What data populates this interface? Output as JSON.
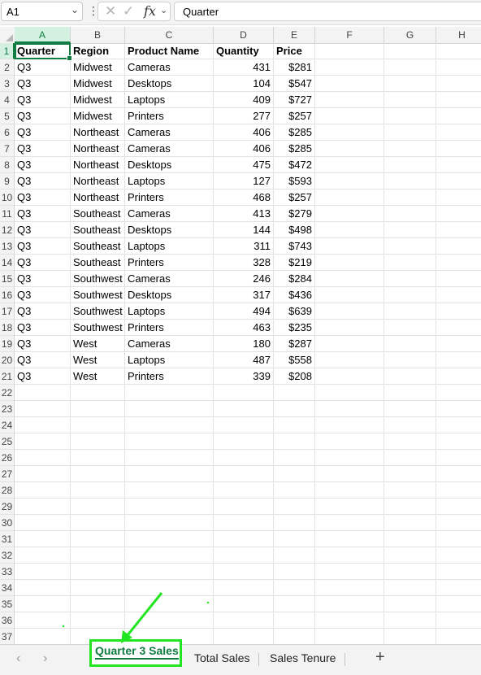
{
  "formula_bar": {
    "name_box": "A1",
    "formula": "Quarter"
  },
  "columns": [
    "A",
    "B",
    "C",
    "D",
    "E",
    "F",
    "G",
    "H"
  ],
  "row_count": 37,
  "header_row": [
    "Quarter",
    "Region",
    "Product Name",
    "Quantity",
    "Price"
  ],
  "rows": [
    [
      "Q3",
      "Midwest",
      "Cameras",
      "431",
      "$281"
    ],
    [
      "Q3",
      "Midwest",
      "Desktops",
      "104",
      "$547"
    ],
    [
      "Q3",
      "Midwest",
      "Laptops",
      "409",
      "$727"
    ],
    [
      "Q3",
      "Midwest",
      "Printers",
      "277",
      "$257"
    ],
    [
      "Q3",
      "Northeast",
      "Cameras",
      "406",
      "$285"
    ],
    [
      "Q3",
      "Northeast",
      "Cameras",
      "406",
      "$285"
    ],
    [
      "Q3",
      "Northeast",
      "Desktops",
      "475",
      "$472"
    ],
    [
      "Q3",
      "Northeast",
      "Laptops",
      "127",
      "$593"
    ],
    [
      "Q3",
      "Northeast",
      "Printers",
      "468",
      "$257"
    ],
    [
      "Q3",
      "Southeast",
      "Cameras",
      "413",
      "$279"
    ],
    [
      "Q3",
      "Southeast",
      "Desktops",
      "144",
      "$498"
    ],
    [
      "Q3",
      "Southeast",
      "Laptops",
      "311",
      "$743"
    ],
    [
      "Q3",
      "Southeast",
      "Printers",
      "328",
      "$219"
    ],
    [
      "Q3",
      "Southwest",
      "Cameras",
      "246",
      "$284"
    ],
    [
      "Q3",
      "Southwest",
      "Desktops",
      "317",
      "$436"
    ],
    [
      "Q3",
      "Southwest",
      "Laptops",
      "494",
      "$639"
    ],
    [
      "Q3",
      "Southwest",
      "Printers",
      "463",
      "$235"
    ],
    [
      "Q3",
      "West",
      "Cameras",
      "180",
      "$287"
    ],
    [
      "Q3",
      "West",
      "Laptops",
      "487",
      "$558"
    ],
    [
      "Q3",
      "West",
      "Printers",
      "339",
      "$208"
    ]
  ],
  "sheet_tabs": [
    "Quarter 3 Sales",
    "Total Sales",
    "Sales Tenure"
  ],
  "active_tab": "Quarter 3 Sales",
  "colors": {
    "accent": "#107c41",
    "annotation": "#22e622"
  },
  "icons": {
    "name_box_dropdown": "chevron-down-icon",
    "cancel": "cancel-x-icon",
    "enter": "checkmark-icon",
    "function": "fx-icon",
    "prev_sheet": "chevron-left-icon",
    "next_sheet": "chevron-right-icon",
    "add_sheet": "plus-icon"
  }
}
